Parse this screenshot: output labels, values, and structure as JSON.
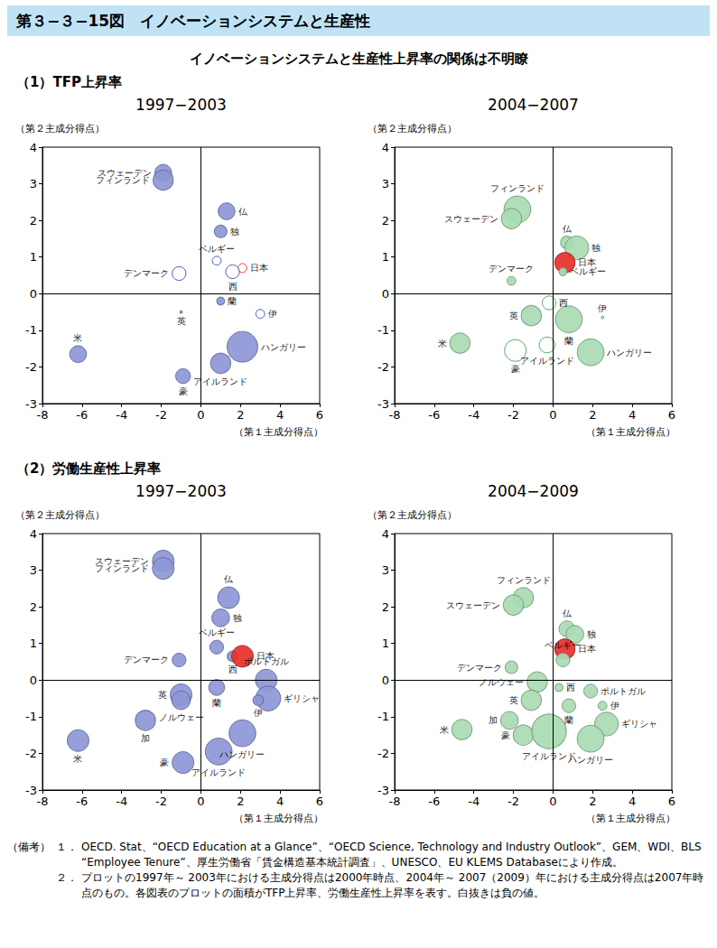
{
  "header": {
    "title": "第３−３−15図　イノベーションシステムと生産性",
    "subtitle": "イノベーションシステムと生産性上昇率の関係は不明瞭"
  },
  "chart_data": [
    {
      "type": "scatter",
      "group": "（1）TFP上昇率",
      "title": "1997−2003",
      "xlabel": "（第１主成分得点）",
      "ylabel": "（第２主成分得点）",
      "xlim": [
        -8,
        6
      ],
      "xticks": [
        -8,
        -6,
        -4,
        -2,
        0,
        2,
        4,
        6
      ],
      "ylim": [
        -3,
        4
      ],
      "yticks": [
        -3,
        -2,
        -1,
        0,
        1,
        2,
        3,
        4
      ],
      "grid": false,
      "labels": [
        "スウェーデン",
        "フィンランド",
        "仏",
        "独",
        "ベルギー",
        "日本",
        "西",
        "デンマーク",
        "蘭",
        "英",
        "伊",
        "米",
        "ハンガリー",
        "アイルランド",
        "豪"
      ],
      "x": [
        -1.9,
        -1.9,
        1.3,
        1.0,
        0.8,
        2.1,
        1.6,
        -1.1,
        1.0,
        -1.0,
        3.0,
        -6.2,
        2.1,
        1.0,
        -0.9
      ],
      "y": [
        3.3,
        3.1,
        2.25,
        1.7,
        0.9,
        0.7,
        0.6,
        0.55,
        -0.2,
        -0.5,
        -0.55,
        -1.65,
        -1.45,
        -1.9,
        -2.25
      ],
      "sizes": [
        0.9,
        1.3,
        0.9,
        0.5,
        -0.25,
        -0.25,
        -0.6,
        -0.6,
        0.2,
        0.02,
        -0.25,
        0.9,
        3.0,
        1.3,
        0.7
      ],
      "colors": [
        "#8d97d6",
        "#8d97d6",
        "#8d97d6",
        "#8d97d6",
        "#3f4fae",
        "#e8302a",
        "#3f4fae",
        "#3f4fae",
        "#8d97d6",
        "#8d97d6",
        "#3f4fae",
        "#8d97d6",
        "#8d97d6",
        "#8d97d6",
        "#8d97d6"
      ]
    },
    {
      "type": "scatter",
      "group": "（1）TFP上昇率",
      "title": "2004−2007",
      "xlabel": "（第１主成分得点）",
      "ylabel": "（第２主成分得点）",
      "xlim": [
        -8,
        6
      ],
      "xticks": [
        -8,
        -6,
        -4,
        -2,
        0,
        2,
        4,
        6
      ],
      "ylim": [
        -3,
        4
      ],
      "yticks": [
        -3,
        -2,
        -1,
        0,
        1,
        2,
        3,
        4
      ],
      "grid": false,
      "labels": [
        "フィンランド",
        "スウェーデン",
        "仏",
        "独",
        "日本",
        "ベルギー",
        "デンマーク",
        "西",
        "英",
        "蘭",
        "伊",
        "米",
        "豪",
        "アイルランド",
        "ハンガリー"
      ],
      "x": [
        -1.8,
        -2.1,
        0.7,
        1.2,
        0.6,
        0.5,
        -2.1,
        -0.2,
        -1.1,
        0.8,
        2.5,
        -4.7,
        -1.9,
        -0.3,
        1.9
      ],
      "y": [
        2.3,
        2.05,
        1.4,
        1.25,
        0.85,
        0.6,
        0.35,
        -0.25,
        -0.6,
        -0.7,
        -0.65,
        -1.35,
        -1.55,
        -1.4,
        -1.6
      ],
      "sizes": [
        2.3,
        1.3,
        0.5,
        1.8,
        1.3,
        0.2,
        0.25,
        -0.6,
        1.3,
        2.3,
        -0.02,
        1.3,
        -1.5,
        -0.8,
        2.3
      ],
      "colors": [
        "#a8dbb2",
        "#a8dbb2",
        "#a8dbb2",
        "#a8dbb2",
        "#e8302a",
        "#a8dbb2",
        "#a8dbb2",
        "#46a45c",
        "#a8dbb2",
        "#a8dbb2",
        "#46a45c",
        "#a8dbb2",
        "#46a45c",
        "#46a45c",
        "#a8dbb2"
      ]
    },
    {
      "type": "scatter",
      "group": "（2）労働生産性上昇率",
      "title": "1997−2003",
      "xlabel": "（第１主成分得点）",
      "ylabel": "（第２主成分得点）",
      "xlim": [
        -8,
        6
      ],
      "xticks": [
        -8,
        -6,
        -4,
        -2,
        0,
        2,
        4,
        6
      ],
      "ylim": [
        -3,
        4
      ],
      "yticks": [
        -3,
        -2,
        -1,
        0,
        1,
        2,
        3,
        4
      ],
      "grid": false,
      "labels": [
        "スウェーデン",
        "フィンランド",
        "仏",
        "独",
        "ベルギー",
        "西",
        "日本",
        "デンマーク",
        "ポルトガル",
        "ギリシャ",
        "伊",
        "英",
        "ノルウェー",
        "蘭",
        "加",
        "米",
        "豪",
        "ハンガリー",
        "アイルランド"
      ],
      "x": [
        -1.9,
        -1.9,
        1.4,
        1.0,
        0.8,
        1.6,
        2.1,
        -1.1,
        3.3,
        3.4,
        2.9,
        -1.0,
        -1.0,
        0.8,
        -2.8,
        -6.2,
        -0.9,
        2.1,
        0.9
      ],
      "y": [
        3.25,
        3.05,
        2.25,
        1.7,
        0.9,
        0.65,
        0.65,
        0.55,
        0.0,
        -0.5,
        -0.55,
        -0.4,
        -0.55,
        -0.2,
        -1.1,
        -1.65,
        -2.25,
        -1.45,
        -1.95
      ],
      "sizes": [
        1.5,
        1.5,
        1.5,
        1.0,
        0.6,
        0.35,
        1.5,
        0.6,
        1.5,
        2.0,
        0.35,
        1.5,
        1.1,
        0.8,
        1.3,
        1.5,
        1.5,
        2.3,
        2.3
      ],
      "colors": [
        "#8d97d6",
        "#8d97d6",
        "#8d97d6",
        "#8d97d6",
        "#8d97d6",
        "#8d97d6",
        "#e8302a",
        "#8d97d6",
        "#8d97d6",
        "#8d97d6",
        "#8d97d6",
        "#8d97d6",
        "#8d97d6",
        "#8d97d6",
        "#8d97d6",
        "#8d97d6",
        "#8d97d6",
        "#8d97d6",
        "#8d97d6"
      ]
    },
    {
      "type": "scatter",
      "group": "（2）労働生産性上昇率",
      "title": "2004−2009",
      "xlabel": "（第１主成分得点）",
      "ylabel": "（第２主成分得点）",
      "xlim": [
        -8,
        6
      ],
      "xticks": [
        -8,
        -6,
        -4,
        -2,
        0,
        2,
        4,
        6
      ],
      "ylim": [
        -3,
        4
      ],
      "yticks": [
        -3,
        -2,
        -1,
        0,
        1,
        2,
        3,
        4
      ],
      "grid": false,
      "labels": [
        "フィンランド",
        "スウェーデン",
        "仏",
        "独",
        "日本",
        "ベルギー",
        "ノルウェー",
        "デンマーク",
        "西",
        "英",
        "加",
        "豪",
        "米",
        "アイルランド",
        "蘭",
        "ポルトガル",
        "伊",
        "ギリシャ",
        "ハンガリー"
      ],
      "x": [
        -1.5,
        -2.0,
        0.7,
        1.1,
        0.6,
        0.5,
        -0.8,
        -2.1,
        0.3,
        -1.1,
        -2.2,
        -1.5,
        -4.6,
        -0.2,
        0.8,
        1.9,
        2.5,
        2.7,
        1.9
      ],
      "y": [
        2.25,
        2.05,
        1.4,
        1.25,
        0.85,
        0.55,
        -0.05,
        0.35,
        -0.2,
        -0.55,
        -1.1,
        -1.5,
        -1.35,
        -1.4,
        -0.7,
        -0.3,
        -0.7,
        -1.2,
        -1.6
      ],
      "sizes": [
        1.3,
        1.3,
        0.8,
        1.0,
        1.3,
        0.6,
        1.3,
        0.5,
        0.2,
        1.3,
        1.0,
        1.3,
        1.3,
        3.8,
        0.6,
        0.6,
        0.25,
        1.8,
        2.3
      ],
      "colors": [
        "#a8dbb2",
        "#a8dbb2",
        "#a8dbb2",
        "#a8dbb2",
        "#e8302a",
        "#a8dbb2",
        "#a8dbb2",
        "#a8dbb2",
        "#a8dbb2",
        "#a8dbb2",
        "#a8dbb2",
        "#a8dbb2",
        "#a8dbb2",
        "#a8dbb2",
        "#a8dbb2",
        "#a8dbb2",
        "#a8dbb2",
        "#a8dbb2",
        "#a8dbb2"
      ]
    }
  ],
  "notes": {
    "label": "（備考）",
    "items": [
      {
        "num": "１．",
        "text": "OECD. Stat、“OECD Education at a Glance”、“OECD Science, Technology and Industry Outlook”、GEM、WDI、BLS “Employee Tenure”、厚生労働省「賃金構造基本統計調査」、UNESCO、EU KLEMS Databaseにより作成。"
      },
      {
        "num": "２．",
        "text": "プロットの1997年～ 2003年における主成分得点は2000年時点、2004年～ 2007（2009）年における主成分得点は2007年時点のもの。各図表のプロットの面積がTFP上昇率、労働生産性上昇率を表す。白抜きは負の値。"
      }
    ]
  }
}
